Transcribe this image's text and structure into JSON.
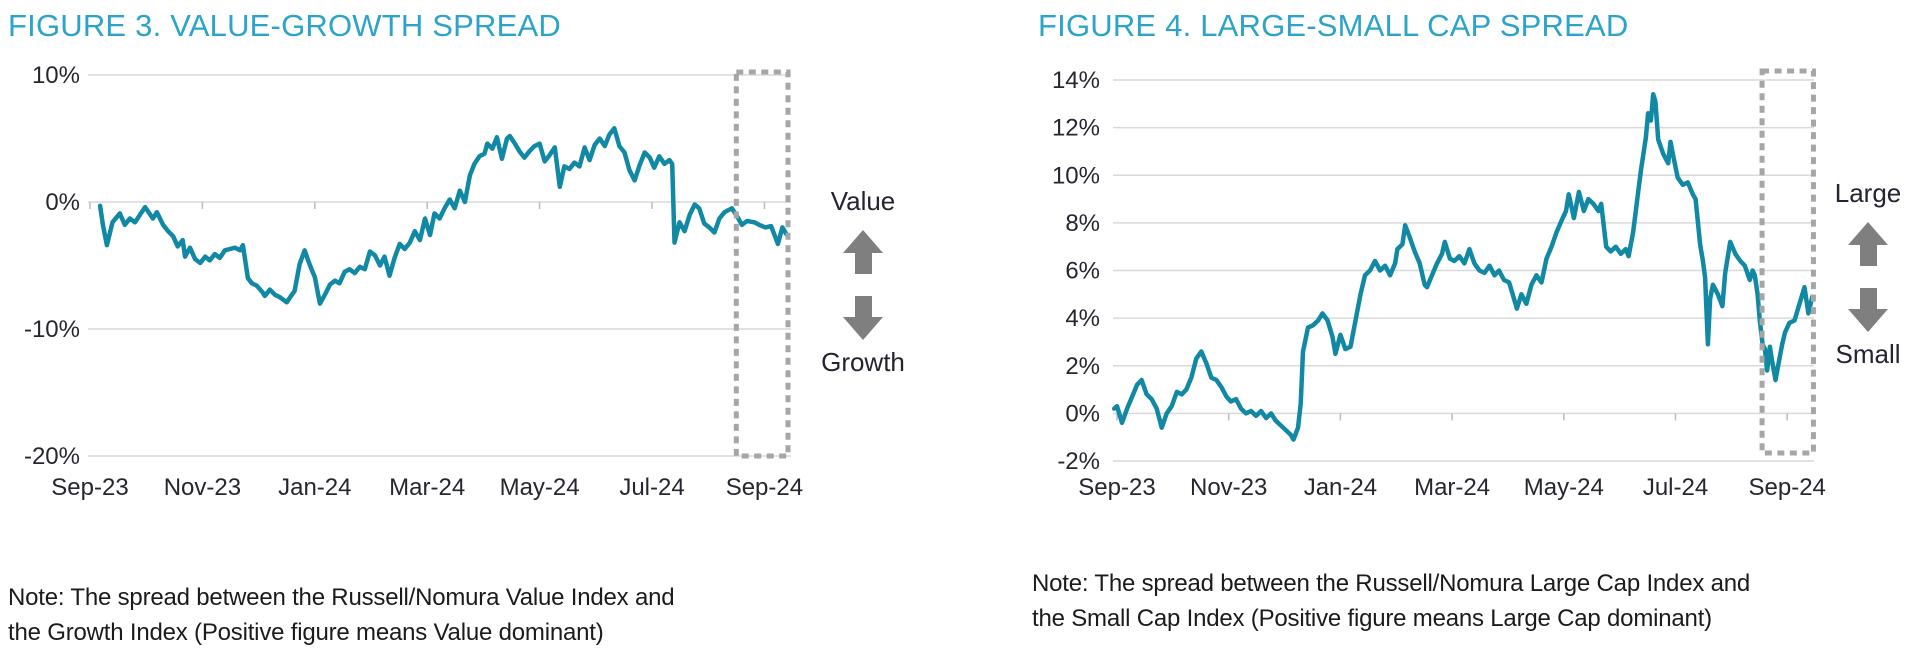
{
  "figures": [
    {
      "title": "FIGURE 3. VALUE-GROWTH SPREAD",
      "note": {
        "line1": "Note: The spread between the Russell/Nomura Value Index and",
        "line2": "the Growth Index (Positive figure means Value dominant)"
      },
      "annotation": {
        "top_label": "Value",
        "bottom_label": "Growth"
      }
    },
    {
      "title": "FIGURE 4. LARGE-SMALL CAP SPREAD",
      "note": {
        "line1": "Note: The spread between the Russell/Nomura Large Cap Index and",
        "line2": "the Small Cap Index (Positive figure means Large Cap dominant)"
      },
      "annotation": {
        "top_label": "Large",
        "bottom_label": "Small"
      }
    }
  ],
  "colors": {
    "title": "#2ca3c9",
    "line": "#1189a4",
    "grid": "#d9d9d9",
    "axis_tick": "#bfbfbf",
    "axis_text": "#262630",
    "arrow": "#7f7f7f",
    "highlight_box": "#a6a6a6"
  },
  "chart_data": [
    {
      "type": "line",
      "title": "FIGURE 3. VALUE-GROWTH SPREAD",
      "xlabel": "",
      "ylabel": "",
      "x_unit": "months since Sep-2023",
      "x_tick_labels": [
        "Sep-23",
        "Nov-23",
        "Jan-24",
        "Mar-24",
        "May-24",
        "Jul-24",
        "Sep-24"
      ],
      "x_tick_months": [
        0,
        2,
        4,
        6,
        8,
        10,
        12
      ],
      "ylim": [
        -20,
        10
      ],
      "y_ticks": [
        10,
        0,
        -10,
        -20
      ],
      "y_tick_labels": [
        "10%",
        "0%",
        "-10%",
        "-20%"
      ],
      "grid": true,
      "legend": false,
      "highlight_box_months": [
        11.5,
        12.42
      ],
      "series": [
        {
          "name": "Value minus Growth spread (%)",
          "x": [
            0.18,
            0.23,
            0.3,
            0.4,
            0.53,
            0.62,
            0.71,
            0.8,
            0.89,
            0.98,
            1.12,
            1.19,
            1.3,
            1.39,
            1.48,
            1.56,
            1.65,
            1.69,
            1.78,
            1.87,
            1.96,
            2.05,
            2.13,
            2.22,
            2.31,
            2.4,
            2.49,
            2.58,
            2.67,
            2.72,
            2.81,
            2.88,
            2.97,
            3.07,
            3.11,
            3.2,
            3.29,
            3.38,
            3.5,
            3.56,
            3.64,
            3.73,
            3.82,
            3.88,
            3.96,
            4.0,
            4.09,
            4.18,
            4.27,
            4.36,
            4.44,
            4.53,
            4.62,
            4.71,
            4.8,
            4.89,
            4.98,
            5.07,
            5.16,
            5.24,
            5.33,
            5.42,
            5.51,
            5.6,
            5.69,
            5.78,
            5.87,
            5.96,
            6.05,
            6.13,
            6.22,
            6.31,
            6.4,
            6.49,
            6.58,
            6.67,
            6.76,
            6.84,
            6.93,
            7.02,
            7.07,
            7.16,
            7.24,
            7.33,
            7.42,
            7.47,
            7.56,
            7.64,
            7.73,
            7.82,
            7.91,
            8.0,
            8.09,
            8.18,
            8.27,
            8.36,
            8.44,
            8.53,
            8.62,
            8.71,
            8.8,
            8.89,
            8.98,
            9.07,
            9.16,
            9.24,
            9.33,
            9.42,
            9.51,
            9.6,
            9.69,
            9.78,
            9.87,
            9.96,
            10.04,
            10.13,
            10.22,
            10.31,
            10.36,
            10.4,
            10.49,
            10.58,
            10.67,
            10.76,
            10.84,
            10.93,
            11.02,
            11.11,
            11.2,
            11.29,
            11.42,
            11.51,
            11.6,
            11.69,
            11.82,
            11.91,
            12.02,
            12.12,
            12.24,
            12.32,
            12.4
          ],
          "y": [
            -0.3,
            -1.8,
            -3.4,
            -1.6,
            -0.9,
            -1.8,
            -1.3,
            -1.6,
            -1.0,
            -0.4,
            -1.3,
            -0.8,
            -1.8,
            -2.3,
            -2.7,
            -3.5,
            -3.0,
            -4.3,
            -3.6,
            -4.5,
            -4.8,
            -4.3,
            -4.6,
            -4.1,
            -4.4,
            -3.8,
            -3.7,
            -3.6,
            -3.8,
            -3.4,
            -6.0,
            -6.4,
            -6.6,
            -7.1,
            -7.4,
            -6.9,
            -7.3,
            -7.5,
            -7.9,
            -7.5,
            -7.0,
            -4.9,
            -3.8,
            -4.6,
            -5.5,
            -5.9,
            -8.0,
            -7.3,
            -6.5,
            -6.2,
            -6.4,
            -5.5,
            -5.3,
            -5.6,
            -5.1,
            -5.3,
            -3.9,
            -4.2,
            -5.0,
            -4.3,
            -5.8,
            -4.4,
            -3.3,
            -3.7,
            -3.2,
            -2.3,
            -3.0,
            -1.3,
            -2.6,
            -0.9,
            -1.3,
            -0.5,
            0.2,
            -0.5,
            0.9,
            0.0,
            2.1,
            3.0,
            3.6,
            3.8,
            4.6,
            4.2,
            5.1,
            3.4,
            5.0,
            5.2,
            4.6,
            4.0,
            3.5,
            4.0,
            4.4,
            4.6,
            3.2,
            3.7,
            4.3,
            1.2,
            2.8,
            2.6,
            3.1,
            2.8,
            4.3,
            3.3,
            4.5,
            5.0,
            4.4,
            5.3,
            5.8,
            4.4,
            3.9,
            2.5,
            1.7,
            2.9,
            3.9,
            3.5,
            2.7,
            3.6,
            3.0,
            3.3,
            3.0,
            -3.2,
            -1.6,
            -2.3,
            -1.0,
            -0.2,
            -0.5,
            -1.7,
            -2.0,
            -2.4,
            -1.3,
            -0.8,
            -0.5,
            -1.1,
            -1.8,
            -1.5,
            -1.6,
            -1.8,
            -2.0,
            -1.9,
            -3.3,
            -2.0,
            -2.6
          ]
        }
      ]
    },
    {
      "type": "line",
      "title": "FIGURE 4. LARGE-SMALL CAP SPREAD",
      "xlabel": "",
      "ylabel": "",
      "x_unit": "months since Sep-2023",
      "x_tick_labels": [
        "Sep-23",
        "Nov-23",
        "Jan-24",
        "Mar-24",
        "May-24",
        "Jul-24",
        "Sep-24"
      ],
      "x_tick_months": [
        0,
        2,
        4,
        6,
        8,
        10,
        12
      ],
      "ylim": [
        -2,
        14
      ],
      "y_ticks": [
        14,
        12,
        10,
        8,
        6,
        4,
        2,
        0,
        -2
      ],
      "y_tick_labels": [
        "14%",
        "12%",
        "10%",
        "8%",
        "6%",
        "4%",
        "2%",
        "0%",
        "-2%"
      ],
      "grid": true,
      "legend": false,
      "highlight_box_months": [
        11.55,
        12.47
      ],
      "series": [
        {
          "name": "Large Cap minus Small Cap spread (%)",
          "x": [
            -0.05,
            0.0,
            0.09,
            0.18,
            0.27,
            0.36,
            0.44,
            0.53,
            0.62,
            0.71,
            0.8,
            0.89,
            0.98,
            1.07,
            1.16,
            1.24,
            1.33,
            1.42,
            1.51,
            1.6,
            1.69,
            1.78,
            1.87,
            1.96,
            2.04,
            2.13,
            2.22,
            2.31,
            2.4,
            2.49,
            2.58,
            2.67,
            2.76,
            2.84,
            2.93,
            3.02,
            3.11,
            3.16,
            3.24,
            3.29,
            3.33,
            3.42,
            3.51,
            3.6,
            3.68,
            3.77,
            3.86,
            3.91,
            4.0,
            4.09,
            4.18,
            4.27,
            4.36,
            4.44,
            4.53,
            4.62,
            4.71,
            4.8,
            4.89,
            4.98,
            5.02,
            5.11,
            5.16,
            5.24,
            5.33,
            5.42,
            5.51,
            5.55,
            5.64,
            5.73,
            5.82,
            5.87,
            5.96,
            6.04,
            6.13,
            6.22,
            6.31,
            6.4,
            6.49,
            6.58,
            6.67,
            6.76,
            6.84,
            6.93,
            7.02,
            7.11,
            7.16,
            7.24,
            7.33,
            7.42,
            7.51,
            7.6,
            7.69,
            7.78,
            7.87,
            7.96,
            8.04,
            8.09,
            8.18,
            8.27,
            8.36,
            8.44,
            8.53,
            8.62,
            8.67,
            8.76,
            8.84,
            8.93,
            9.02,
            9.11,
            9.16,
            9.24,
            9.29,
            9.38,
            9.42,
            9.47,
            9.51,
            9.56,
            9.6,
            9.64,
            9.69,
            9.78,
            9.87,
            9.91,
            9.96,
            10.04,
            10.13,
            10.22,
            10.31,
            10.36,
            10.44,
            10.49,
            10.53,
            10.58,
            10.62,
            10.67,
            10.76,
            10.84,
            10.89,
            10.98,
            11.07,
            11.16,
            11.24,
            11.33,
            11.38,
            11.42,
            11.47,
            11.51,
            11.56,
            11.6,
            11.64,
            11.69,
            11.73,
            11.79,
            11.87,
            11.91,
            11.96,
            12.04,
            12.13,
            12.22,
            12.31,
            12.38,
            12.45
          ],
          "y": [
            0.2,
            0.3,
            -0.4,
            0.2,
            0.7,
            1.2,
            1.4,
            0.8,
            0.6,
            0.2,
            -0.6,
            0.0,
            0.3,
            0.9,
            0.8,
            1.0,
            1.5,
            2.3,
            2.6,
            2.1,
            1.5,
            1.4,
            1.1,
            0.7,
            0.5,
            0.6,
            0.2,
            0.0,
            0.1,
            -0.1,
            0.1,
            -0.2,
            0.0,
            -0.3,
            -0.5,
            -0.7,
            -0.9,
            -1.1,
            -0.6,
            0.4,
            2.6,
            3.6,
            3.7,
            3.9,
            4.2,
            3.9,
            3.2,
            2.5,
            3.3,
            2.7,
            2.8,
            3.9,
            5.0,
            5.8,
            6.0,
            6.4,
            6.0,
            6.2,
            5.8,
            6.3,
            6.9,
            7.1,
            7.9,
            7.4,
            6.8,
            6.3,
            5.4,
            5.3,
            5.8,
            6.3,
            6.7,
            7.2,
            6.5,
            6.4,
            6.6,
            6.3,
            6.9,
            6.3,
            6.0,
            5.9,
            6.2,
            5.8,
            6.0,
            5.6,
            5.5,
            4.8,
            4.4,
            5.0,
            4.6,
            5.4,
            5.8,
            5.5,
            6.5,
            7.0,
            7.6,
            8.1,
            8.5,
            9.2,
            8.2,
            9.3,
            8.5,
            9.0,
            8.8,
            8.5,
            8.8,
            7.0,
            6.8,
            7.0,
            6.7,
            6.9,
            6.6,
            7.6,
            8.5,
            10.2,
            10.8,
            11.6,
            12.6,
            12.3,
            13.4,
            13.1,
            11.5,
            10.9,
            10.5,
            11.4,
            10.8,
            9.9,
            9.6,
            9.7,
            9.2,
            9.0,
            7.1,
            6.4,
            5.7,
            2.9,
            4.8,
            5.4,
            5.0,
            4.5,
            5.9,
            7.2,
            6.7,
            6.4,
            6.2,
            5.6,
            6.0,
            5.8,
            5.0,
            3.9,
            2.9,
            2.7,
            1.8,
            2.8,
            2.2,
            1.4,
            2.4,
            2.9,
            3.4,
            3.8,
            3.9,
            4.6,
            5.3,
            4.2,
            4.9
          ]
        }
      ]
    }
  ]
}
